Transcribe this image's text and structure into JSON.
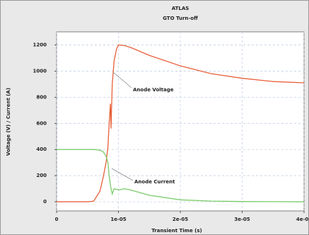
{
  "chart_data": {
    "type": "line",
    "title": "ATLAS",
    "subtitle": "GTO Turn-off",
    "x_label": "Transient Time (s)",
    "y_label": "Voltage (V) / Current (A)",
    "x": [
      0,
      5e-06,
      6e-06,
      7e-06,
      7.5e-06,
      8e-06,
      8.3e-06,
      8.5e-06,
      8.7e-06,
      8.8e-06,
      9e-06,
      9.3e-06,
      9.7e-06,
      1e-05,
      1.1e-05,
      1.2e-05,
      1.5e-05,
      2e-05,
      2.5e-05,
      3e-05,
      3.5e-05,
      4e-05
    ],
    "series": [
      {
        "name": "Anode Voltage",
        "color": "#e8603a",
        "values": [
          0,
          0,
          5,
          80,
          180,
          300,
          420,
          600,
          750,
          560,
          900,
          1080,
          1170,
          1200,
          1195,
          1180,
          1120,
          1040,
          980,
          945,
          920,
          910
        ]
      },
      {
        "name": "Anode Current",
        "color": "#7acb6a",
        "values": [
          400,
          400,
          400,
          395,
          385,
          350,
          300,
          200,
          130,
          100,
          60,
          100,
          95,
          90,
          100,
          90,
          50,
          15,
          5,
          2,
          1,
          0
        ]
      }
    ],
    "xlim": [
      0,
      4e-05
    ],
    "xticks": [
      0,
      {
        "value": 1e-05,
        "label": "1e-05"
      },
      {
        "value": 2e-05,
        "label": "2e-05"
      },
      {
        "value": 3e-05,
        "label": "3e-05"
      },
      {
        "value": 4e-05,
        "label": "4e-05"
      }
    ],
    "ylim": [
      -70,
      1300
    ],
    "yticks": [
      0,
      200,
      400,
      600,
      800,
      1000,
      1200
    ],
    "grid": true
  }
}
